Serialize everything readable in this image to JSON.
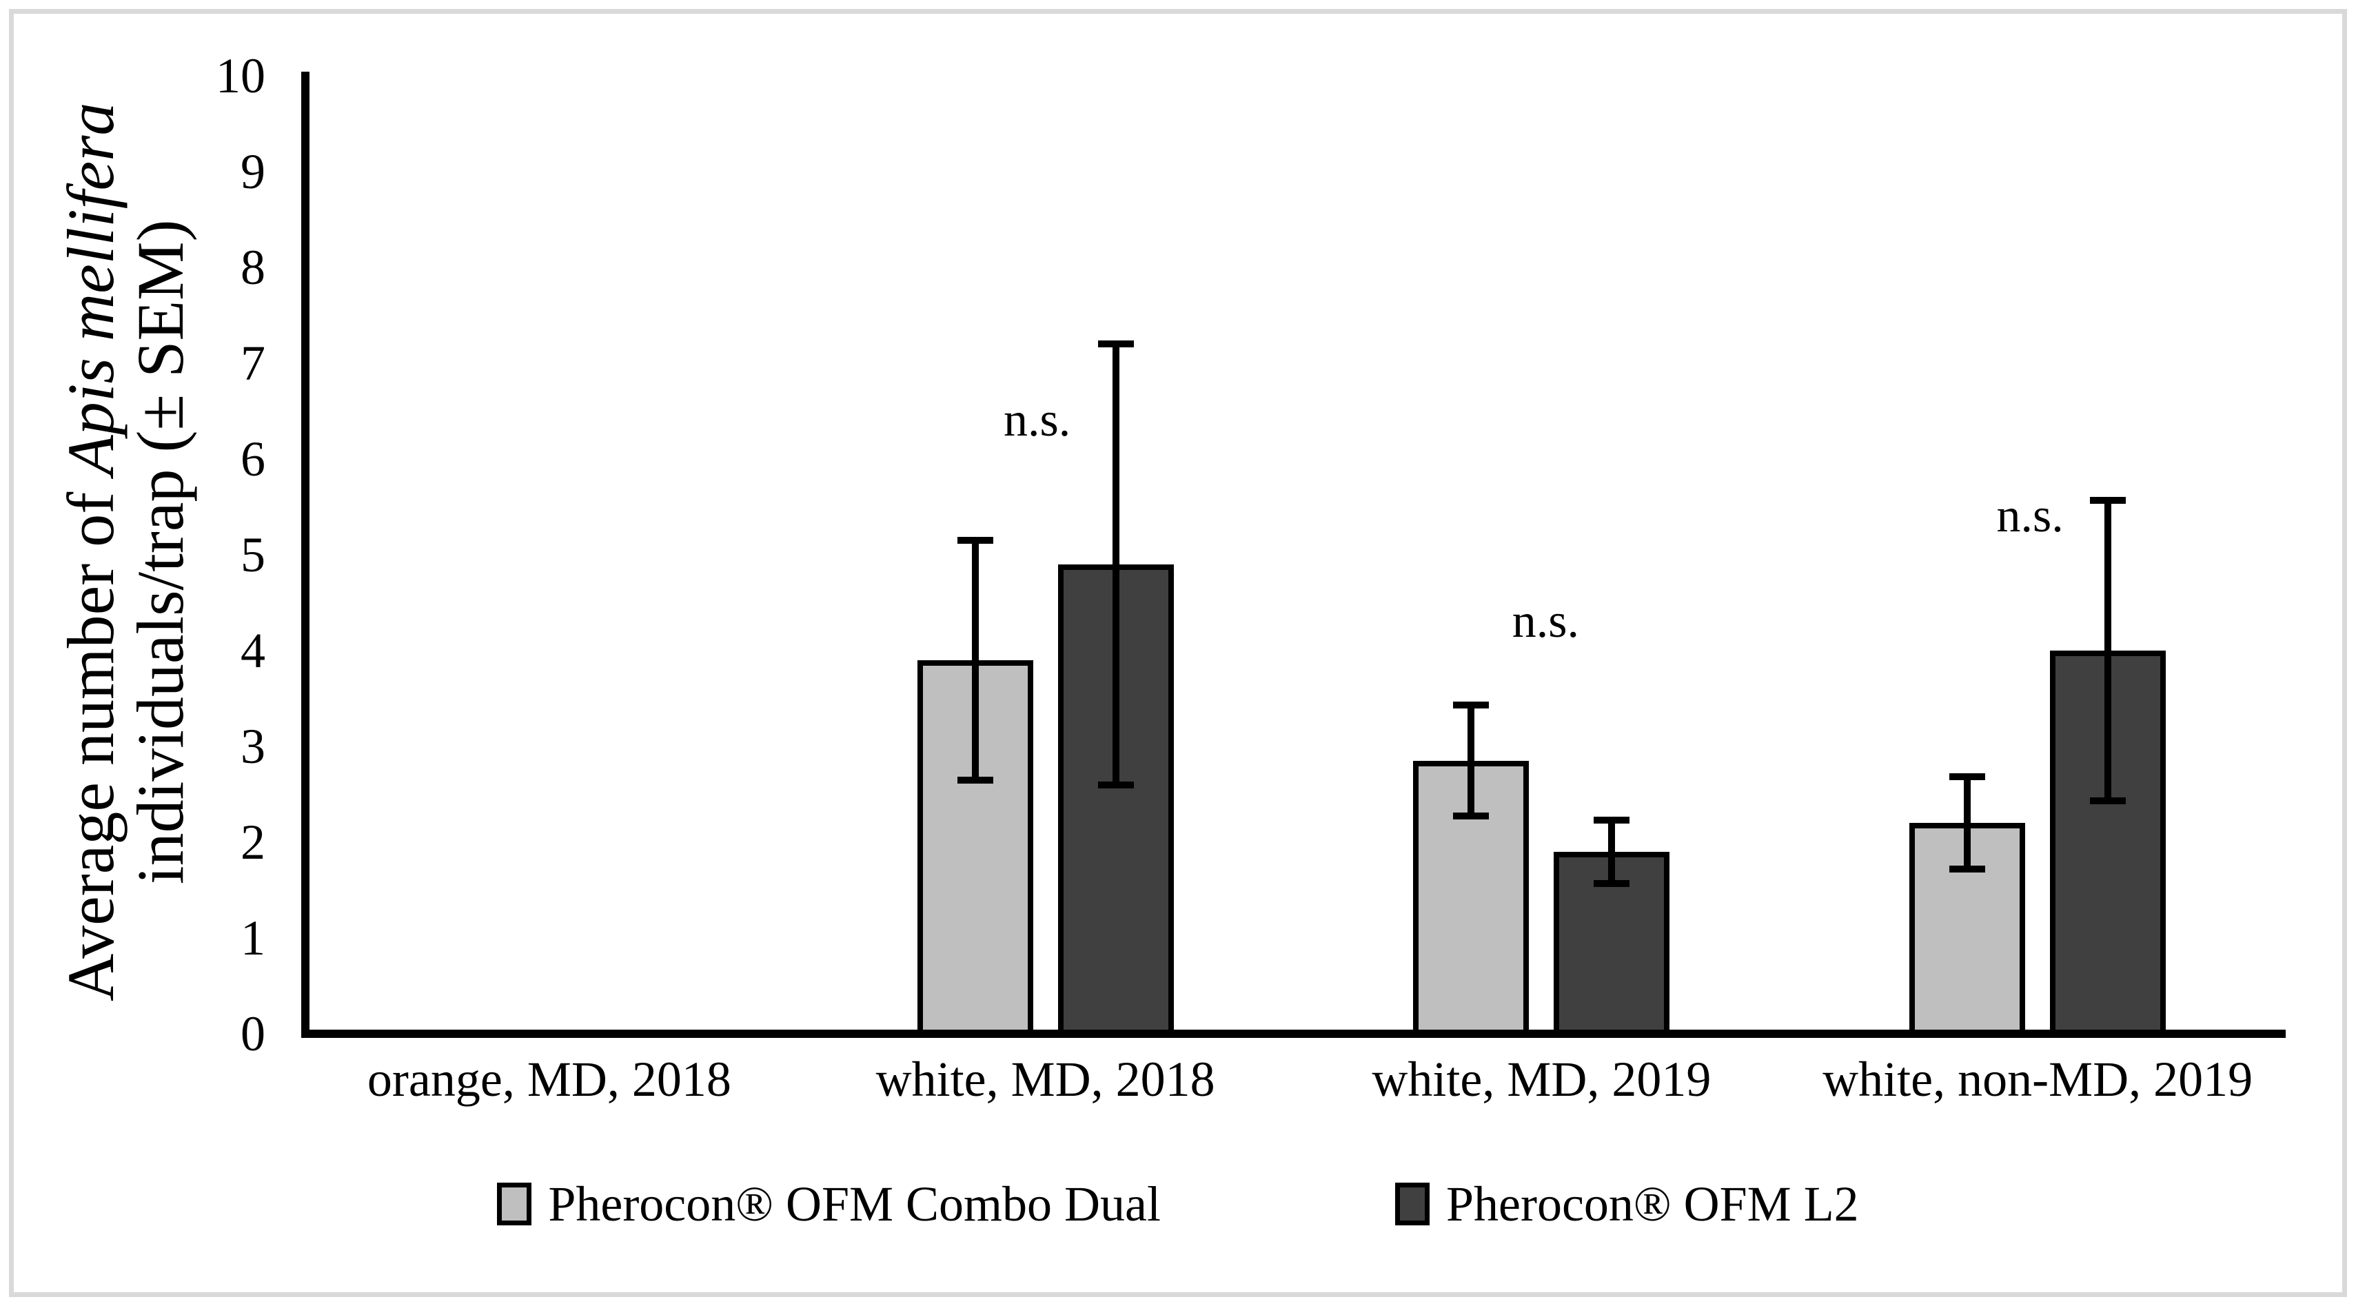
{
  "figure": {
    "background": "#ffffff",
    "border_color": "#d9d9d9"
  },
  "chart_data": {
    "type": "bar",
    "title": "",
    "ylabel_line1": "Average number of ",
    "ylabel_line1_italic": "Apis mellifera",
    "ylabel_line2": "individuals/trap (± SEM)",
    "xlabel": "",
    "ylim": [
      0,
      10
    ],
    "ytick_values": [
      0,
      1,
      2,
      3,
      4,
      5,
      6,
      7,
      8,
      9,
      10
    ],
    "grid": false,
    "legend_position": "bottom",
    "error_bars": "± SEM",
    "categories": [
      "orange, MD, 2018",
      "white, MD, 2018",
      "white, MD, 2019",
      "white, non-MD, 2019"
    ],
    "series": [
      {
        "name": "Pherocon® OFM Combo Dual",
        "color": "#bfbfbf",
        "values": [
          0,
          3.9,
          2.85,
          2.2
        ],
        "sem": [
          0,
          1.25,
          0.58,
          0.48
        ]
      },
      {
        "name": "Pherocon® OFM L2",
        "color": "#404040",
        "values": [
          0,
          4.9,
          1.9,
          4.0
        ],
        "sem": [
          0,
          2.3,
          0.33,
          1.57
        ]
      }
    ],
    "annotations": [
      {
        "text": "n.s.",
        "category_index": 1,
        "y": 6.4,
        "dx": -12
      },
      {
        "text": "n.s.",
        "category_index": 2,
        "y": 4.3,
        "dx": 6
      },
      {
        "text": "n.s.",
        "category_index": 3,
        "y": 5.4,
        "dx": -11
      }
    ]
  }
}
